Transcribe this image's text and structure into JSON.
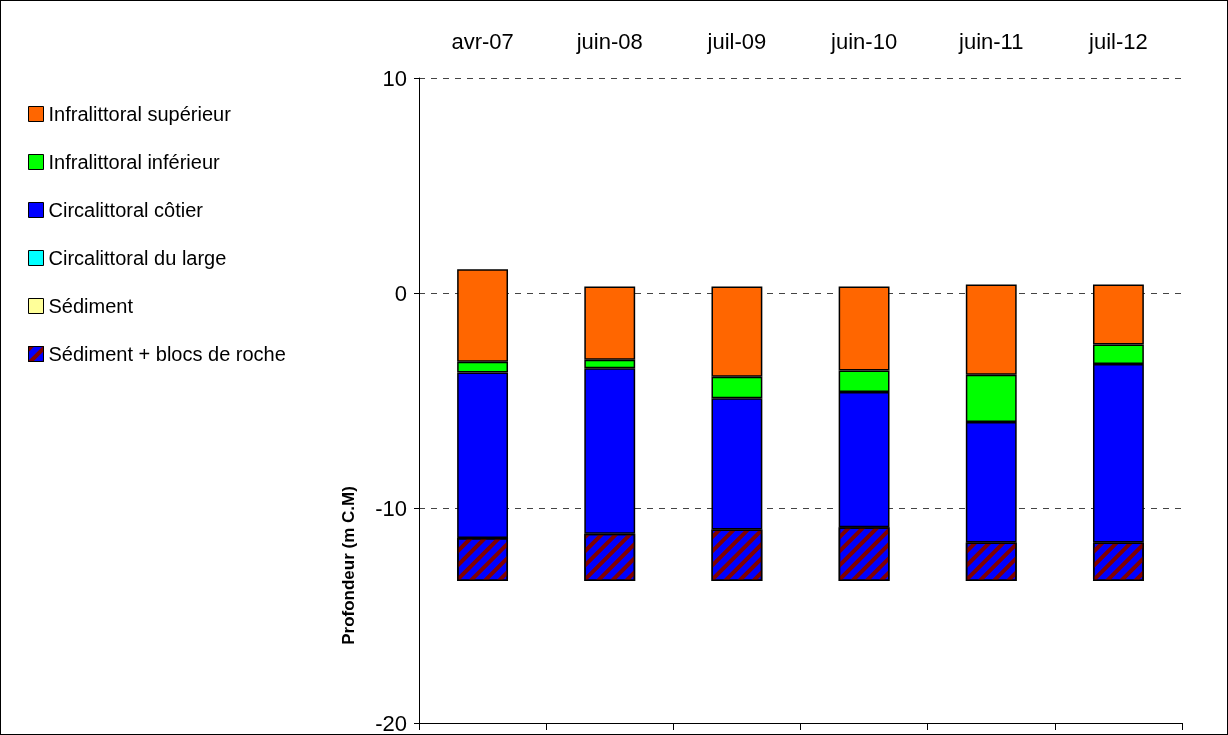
{
  "chart_data": {
    "type": "bar",
    "ylabel": "Profondeur (m C.M)",
    "categories": [
      "avr-07",
      "juin-08",
      "juil-09",
      "juin-10",
      "juin-11",
      "juil-12"
    ],
    "series": [
      {
        "name": "Sédiment + blocs de roche",
        "color": "#0000ff",
        "base": [
          -13.4,
          -13.4,
          -13.4,
          -13.4,
          -13.4,
          -13.4
        ],
        "values": [
          2.0,
          2.2,
          2.4,
          2.5,
          1.8,
          1.8
        ]
      },
      {
        "name": "Sédiment",
        "color": "#ffff99",
        "values": [
          null,
          null,
          null,
          null,
          null,
          null
        ]
      },
      {
        "name": "Circalittoral du large",
        "color": "#00ffff",
        "values": [
          null,
          null,
          null,
          null,
          null,
          null
        ]
      },
      {
        "name": "Circalittoral côtier",
        "color": "#0000ff",
        "base": [
          -11.4,
          -11.2,
          -11.0,
          -10.9,
          -11.6,
          -11.6
        ],
        "values": [
          7.7,
          7.7,
          6.1,
          6.3,
          5.6,
          8.3
        ]
      },
      {
        "name": "Infralittoral inférieur",
        "color": "#00ff00",
        "base": [
          -3.7,
          -3.5,
          -4.9,
          -4.6,
          -6.0,
          -3.3
        ],
        "values": [
          0.5,
          0.4,
          1.0,
          1.0,
          2.2,
          0.9
        ]
      },
      {
        "name": "Infralittoral supérieur",
        "color": "#ff6600",
        "base": [
          -3.2,
          -3.1,
          -3.9,
          -3.6,
          -3.8,
          -2.4
        ],
        "values": [
          4.3,
          3.4,
          4.2,
          3.9,
          4.2,
          2.8
        ]
      }
    ],
    "ylim": [
      -20,
      10
    ],
    "yticks": [
      -20,
      -10,
      0,
      10
    ],
    "grid": "y",
    "legend": "left"
  }
}
